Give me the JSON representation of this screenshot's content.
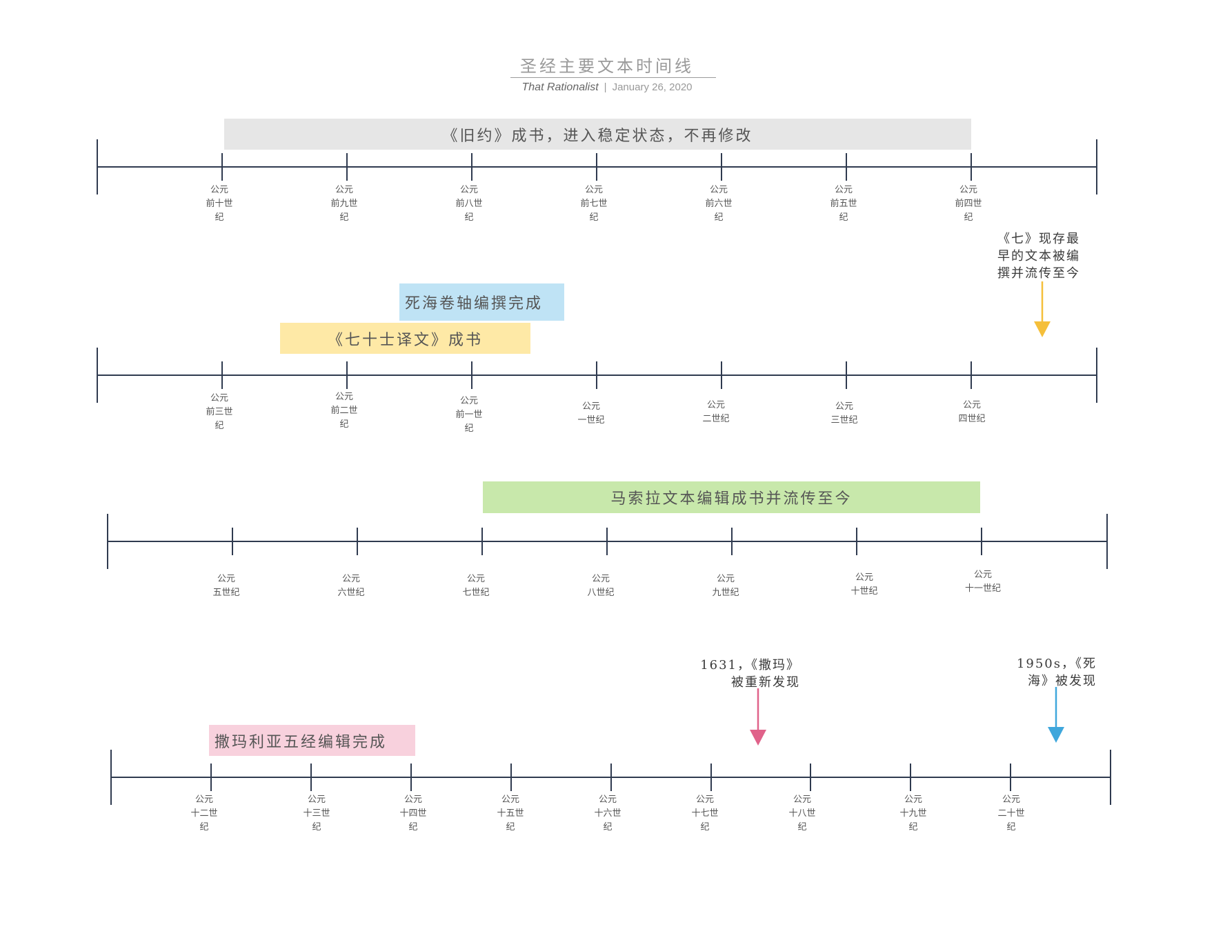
{
  "header": {
    "title": "圣经主要文本时间线",
    "author": "That Rationalist",
    "separator": "|",
    "date": "January 26, 2020"
  },
  "colors": {
    "axis": "#2f3a4f",
    "old_testament_bar": "#e6e6e6",
    "dead_sea_bar": "#bfe3f5",
    "septuagint_bar": "#fee9a6",
    "masoretic_bar": "#c8e8ab",
    "samaritan_bar": "#f8d1dd",
    "arrow_yellow": "#f5bf3a",
    "arrow_pink": "#e0628a",
    "arrow_blue": "#3fa7dc"
  },
  "rows": [
    {
      "id": "row1",
      "labels": [
        "公元\n前十世\n纪",
        "公元\n前九世\n纪",
        "公元\n前八世\n纪",
        "公元\n前七世\n纪",
        "公元\n前六世\n纪",
        "公元\n前五世\n纪",
        "公元\n前四世\n纪"
      ]
    },
    {
      "id": "row2",
      "labels": [
        "公元\n前三世\n纪",
        "公元\n前二世\n纪",
        "公元\n前一世\n纪",
        "公元\n一世纪",
        "公元\n二世纪",
        "公元\n三世纪",
        "公元\n四世纪"
      ]
    },
    {
      "id": "row3",
      "labels": [
        "公元\n五世纪",
        "公元\n六世纪",
        "公元\n七世纪",
        "公元\n八世纪",
        "公元\n九世纪",
        "公元\n十世纪",
        "公元\n十一世纪"
      ]
    },
    {
      "id": "row4",
      "labels": [
        "公元\n十二世\n纪",
        "公元\n十三世\n纪",
        "公元\n十四世\n纪",
        "公元\n十五世\n纪",
        "公元\n十六世\n纪",
        "公元\n十七世\n纪",
        "公元\n十八世\n纪",
        "公元\n十九世\n纪",
        "公元\n二十世\n纪"
      ]
    }
  ],
  "bars": {
    "old_testament": "《旧约》成书，进入稳定状态，不再修改",
    "dead_sea_scrolls": "死海卷轴编撰完成",
    "septuagint": "《七十士译文》成书",
    "masoretic": "马索拉文本编辑成书并流传至今",
    "samaritan": "撒玛利亚五经编辑完成"
  },
  "notes": {
    "septuagint_oldest": "《七》现存最\n早的文本被编\n撰并流传至今",
    "samaritan_rediscovered": "1631，《撒玛》\n被重新发现",
    "dead_sea_discovered": "1950s，《死\n海》被发现"
  }
}
